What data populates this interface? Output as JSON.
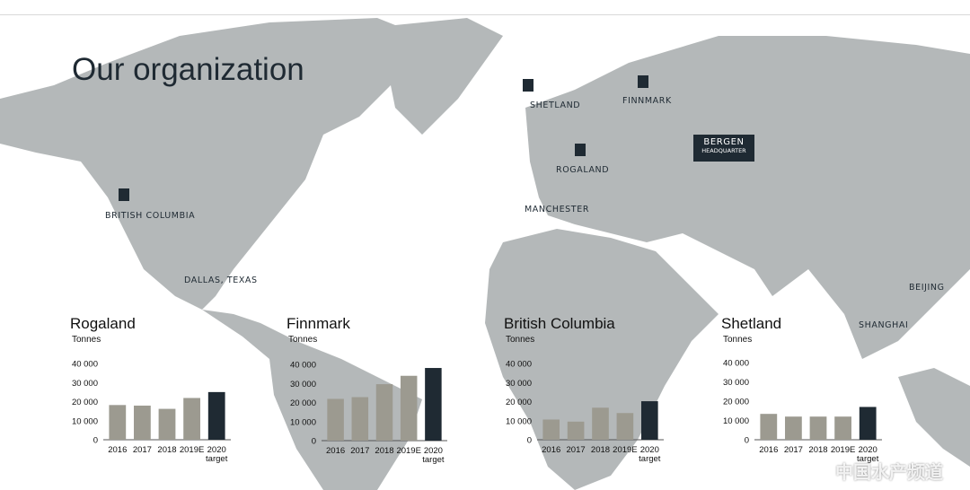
{
  "title": "Our organization",
  "map_labels": {
    "shetland": "SHETLAND",
    "finnmark": "FINNMARK",
    "rogaland": "ROGALAND",
    "bergen": "BERGEN",
    "headquarter": "HEADQUARTER",
    "manchester": "MANCHESTER",
    "british_columbia": "BRITISH COLUMBIA",
    "dallas": "DALLAS, TEXAS",
    "beijing": "BEIJING",
    "shanghai": "SHANGHAI"
  },
  "watermark": "中国水产频道",
  "colors": {
    "map": "#b4b8b9",
    "bar": "#9c9a90",
    "target": "#1f2a33"
  },
  "chart_data": [
    {
      "type": "bar",
      "title": "Rogaland",
      "ylabel": "Tonnes",
      "ylim": [
        0,
        40000
      ],
      "yticks": [
        "0",
        "10 000",
        "20 000",
        "30 000",
        "40 000"
      ],
      "categories": [
        "2016",
        "2017",
        "2018",
        "2019E",
        "2020 target"
      ],
      "values": [
        18200,
        17900,
        16200,
        21900,
        25000
      ]
    },
    {
      "type": "bar",
      "title": "Finnmark",
      "ylabel": "Tonnes",
      "ylim": [
        0,
        40000
      ],
      "yticks": [
        "0",
        "10 000",
        "20 000",
        "30 000",
        "40 000"
      ],
      "categories": [
        "2016",
        "2017",
        "2018",
        "2019E",
        "2020 target"
      ],
      "values": [
        21900,
        22800,
        29600,
        34000,
        38100
      ]
    },
    {
      "type": "bar",
      "title": "British Columbia",
      "ylabel": "Tonnes",
      "ylim": [
        0,
        40000
      ],
      "yticks": [
        "0",
        "10 000",
        "20 000",
        "30 000",
        "40 000"
      ],
      "categories": [
        "2016",
        "2017",
        "2018",
        "2019E",
        "2020 target"
      ],
      "values": [
        10600,
        9500,
        16800,
        14000,
        20200
      ]
    },
    {
      "type": "bar",
      "title": "Shetland",
      "ylabel": "Tonnes",
      "ylim": [
        0,
        40000
      ],
      "yticks": [
        "0",
        "10 000",
        "20 000",
        "30 000",
        "40 000"
      ],
      "categories": [
        "2016",
        "2017",
        "2018",
        "2019E",
        "2020 target"
      ],
      "values": [
        13400,
        12000,
        12000,
        12000,
        17000
      ]
    }
  ]
}
